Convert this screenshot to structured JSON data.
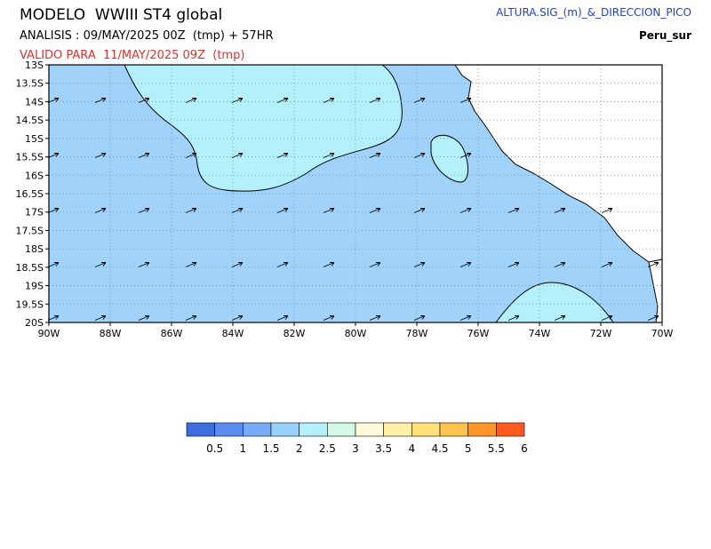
{
  "header": {
    "title": "MODELO  WWIII ST4 global",
    "analysis": "ANALISIS : 09/MAY/2025 00Z  (tmp) + 57HR",
    "valid": "VALIDO PARA  11/MAY/2025 09Z  (tmp)",
    "variable": "ALTURA.SIG_(m)_&_DIRECCION_PICO",
    "region": "Peru_sur"
  },
  "map": {
    "lat_labels": [
      "13S",
      "13.5S",
      "14S",
      "14.5S",
      "15S",
      "15.5S",
      "16S",
      "16.5S",
      "17S",
      "17.5S",
      "18S",
      "18.5S",
      "19S",
      "19.5S",
      "20S"
    ],
    "lon_labels": [
      "90W",
      "88W",
      "86W",
      "84W",
      "82W",
      "80W",
      "78W",
      "76W",
      "74W",
      "72W",
      "70W"
    ]
  },
  "colorbar": {
    "colors": [
      "#3c6ee0",
      "#5a8cf0",
      "#78aaf8",
      "#96d2fa",
      "#b4f0fa",
      "#d2fae6",
      "#fffadc",
      "#fff0aa",
      "#ffe178",
      "#ffc350",
      "#ff9628",
      "#ff5a1e"
    ],
    "labels": [
      0.5,
      1,
      1.5,
      2,
      2.5,
      3,
      3.5,
      4,
      4.5,
      5,
      5.5,
      6
    ]
  }
}
